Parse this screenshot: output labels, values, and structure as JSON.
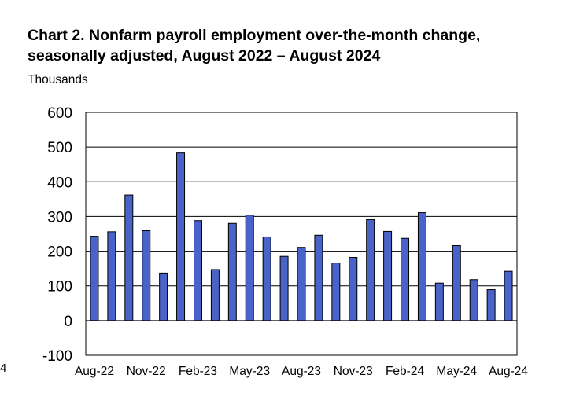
{
  "chart_data": {
    "type": "bar",
    "title_line1": "Chart 2. Nonfarm payroll employment over-the-month change,",
    "title_line2": "seasonally adjusted, August 2022 – August 2024",
    "ylabel": "Thousands",
    "stray_label": "4",
    "ylim": [
      -100,
      600
    ],
    "yticks": [
      600,
      500,
      400,
      300,
      200,
      100,
      0,
      -100
    ],
    "categories": [
      "Aug-22",
      "Sep-22",
      "Oct-22",
      "Nov-22",
      "Dec-22",
      "Jan-23",
      "Feb-23",
      "Mar-23",
      "Apr-23",
      "May-23",
      "Jun-23",
      "Jul-23",
      "Aug-23",
      "Sep-23",
      "Oct-23",
      "Nov-23",
      "Dec-23",
      "Jan-24",
      "Feb-24",
      "Mar-24",
      "Apr-24",
      "May-24",
      "Jun-24",
      "Jul-24",
      "Aug-24"
    ],
    "tick_labels": [
      "Aug-22",
      "Nov-22",
      "Feb-23",
      "May-23",
      "Aug-23",
      "Nov-23",
      "Feb-24",
      "May-24",
      "Aug-24"
    ],
    "tick_label_indices": [
      0,
      3,
      6,
      9,
      12,
      15,
      18,
      21,
      24
    ],
    "values": [
      243,
      256,
      362,
      259,
      137,
      483,
      288,
      147,
      280,
      304,
      241,
      185,
      211,
      246,
      166,
      182,
      291,
      257,
      237,
      311,
      108,
      216,
      118,
      89,
      142
    ],
    "grid": true,
    "colors": {
      "bar_fill": "#4a63c9",
      "bar_stroke": "#000000"
    }
  }
}
